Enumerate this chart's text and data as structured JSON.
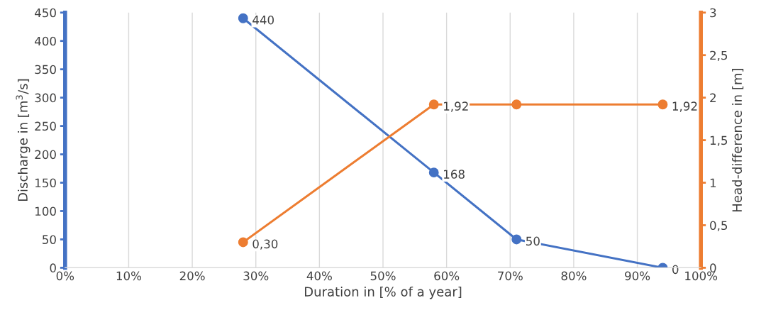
{
  "chart_data": {
    "type": "line",
    "xlabel": "Duration in [% of a year]",
    "ylabel": "Discharge in [m$^{3}$/s]",
    "y2label": "Head-difference in [m]",
    "x": [
      28,
      58,
      71,
      94
    ],
    "series": [
      {
        "color": "#4472c4",
        "values": [
          440,
          168,
          50,
          0
        ],
        "value_labels": [
          "440",
          "168",
          "50",
          "0"
        ]
      },
      {
        "color": "#ed7d31",
        "axis": "y2",
        "values": [
          0.3,
          1.92,
          1.92,
          1.92
        ],
        "value_labels": [
          "0,30",
          "1,92",
          null,
          "1,92"
        ]
      }
    ],
    "xlim": [
      0,
      100
    ],
    "xticks": [
      {
        "value": 0,
        "label": "0%"
      },
      {
        "value": 10,
        "label": "10%"
      },
      {
        "value": 20,
        "label": "20%"
      },
      {
        "value": 30,
        "label": "30%"
      },
      {
        "value": 40,
        "label": "40%"
      },
      {
        "value": 50,
        "label": "50%"
      },
      {
        "value": 60,
        "label": "60%"
      },
      {
        "value": 70,
        "label": "70%"
      },
      {
        "value": 80,
        "label": "80%"
      },
      {
        "value": 90,
        "label": "90%"
      },
      {
        "value": 100,
        "label": "100%"
      }
    ],
    "ylim": [
      0,
      450
    ],
    "yticks": [
      0,
      50,
      100,
      150,
      200,
      250,
      300,
      350,
      400,
      450
    ],
    "y2lim": [
      0,
      3
    ],
    "y2ticks": [
      0,
      {
        "value": 0.5,
        "label": "0,5"
      },
      1,
      {
        "value": 1.5,
        "label": "1,5"
      },
      2,
      {
        "value": 2.5,
        "label": "2,5"
      },
      3
    ],
    "grid": "x",
    "marker": "circle",
    "line_style": "solid"
  }
}
